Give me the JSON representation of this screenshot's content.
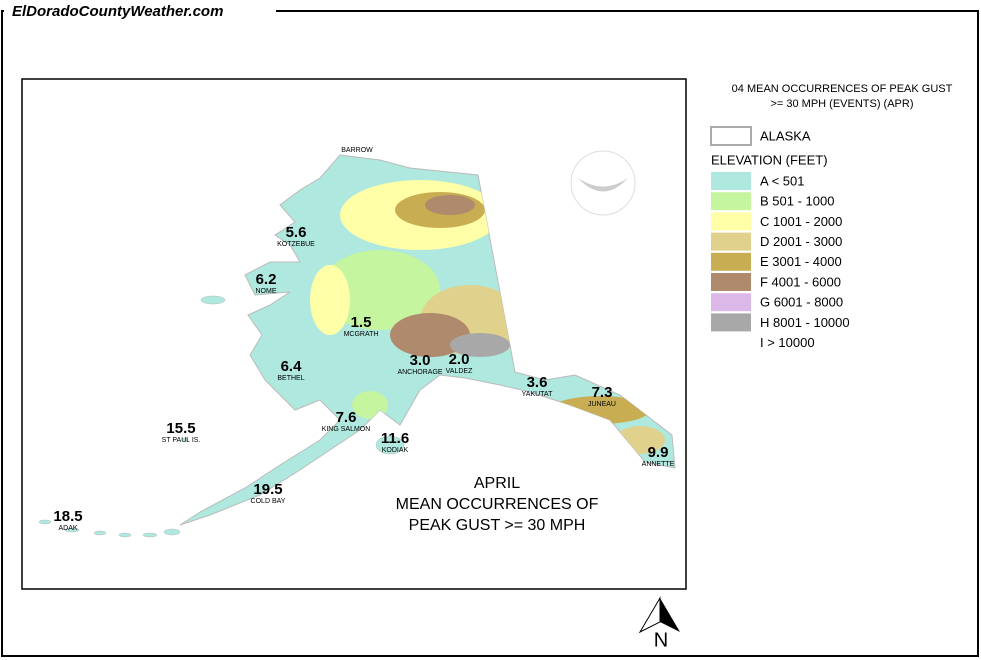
{
  "header": {
    "site": "ElDoradoCountyWeather.com"
  },
  "map": {
    "title": [
      "APRIL",
      "MEAN OCCURRENCES OF",
      "PEAK GUST >= 30 MPH"
    ],
    "stations": [
      {
        "name": "BARROW"
      },
      {
        "name": "KOTZEBUE",
        "value": "5.6"
      },
      {
        "name": "NOME",
        "value": "6.2"
      },
      {
        "name": "MCGRATH",
        "value": "1.5"
      },
      {
        "name": "BETHEL",
        "value": "6.4"
      },
      {
        "name": "ANCHORAGE",
        "value": "3.0"
      },
      {
        "name": "VALDEZ",
        "value": "2.0"
      },
      {
        "name": "YAKUTAT",
        "value": "3.6"
      },
      {
        "name": "JUNEAU",
        "value": "7.3"
      },
      {
        "name": "ANNETTE",
        "value": "9.9"
      },
      {
        "name": "ST PAUL IS.",
        "value": "15.5"
      },
      {
        "name": "KING SALMON",
        "value": "7.6"
      },
      {
        "name": "KODIAK",
        "value": "11.6"
      },
      {
        "name": "COLD BAY",
        "value": "19.5"
      },
      {
        "name": "ADAK",
        "value": "18.5"
      }
    ],
    "north": "N"
  },
  "legend": {
    "title": [
      "04 MEAN OCCURRENCES OF PEAK GUST",
      ">= 30 MPH (EVENTS) (APR)"
    ],
    "boundary": "ALASKA",
    "elevation_title": "ELEVATION (FEET)",
    "items": [
      {
        "label": "A < 501",
        "color": "#aee8de"
      },
      {
        "label": "B 501 - 1000",
        "color": "#c6f5a0"
      },
      {
        "label": "C 1001 - 2000",
        "color": "#ffffa8"
      },
      {
        "label": "D 2001 - 3000",
        "color": "#e0d28c"
      },
      {
        "label": "E 3001 - 4000",
        "color": "#c9ad52"
      },
      {
        "label": "F 4001 - 6000",
        "color": "#b08a6c"
      },
      {
        "label": "G 6001 - 8000",
        "color": "#dcb8e8"
      },
      {
        "label": "H 8001 - 10000",
        "color": "#a8a8a8"
      },
      {
        "label": "I > 10000"
      }
    ]
  }
}
